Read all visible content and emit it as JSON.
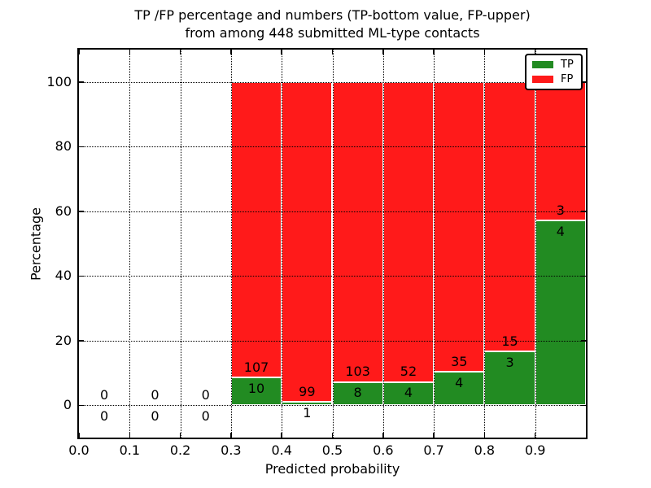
{
  "title": {
    "line1": "TP /FP percentage and numbers (TP-bottom value, FP-upper)",
    "line2": "from among 448 submitted ML-type contacts"
  },
  "axes": {
    "xlabel": "Predicted probability",
    "ylabel": "Percentage",
    "x_tick_labels": [
      "0.0",
      "0.1",
      "0.2",
      "0.3",
      "0.4",
      "0.5",
      "0.6",
      "0.7",
      "0.8",
      "0.9"
    ],
    "y_tick_labels": [
      "0",
      "20",
      "40",
      "60",
      "80",
      "100"
    ],
    "xlim": [
      0.0,
      1.0
    ],
    "ylim": [
      -10,
      110
    ],
    "grid": "dotted"
  },
  "legend": {
    "position": "upper-right",
    "items": [
      {
        "label": "TP",
        "color": "#228b22"
      },
      {
        "label": "FP",
        "color": "#ff1a1a"
      }
    ]
  },
  "chart_data": {
    "type": "bar",
    "stacked": true,
    "normalized_to_percent": 100,
    "title": "TP /FP percentage and numbers (TP-bottom value, FP-upper) from among 448 submitted ML-type contacts",
    "xlabel": "Predicted probability",
    "ylabel": "Percentage",
    "total_contacts": 448,
    "bin_width": 0.1,
    "bin_starts": [
      0.0,
      0.1,
      0.2,
      0.3,
      0.4,
      0.5,
      0.6,
      0.7,
      0.8,
      0.9
    ],
    "series": [
      {
        "name": "TP",
        "color": "#228b22",
        "counts": [
          0,
          0,
          0,
          10,
          1,
          8,
          4,
          4,
          3,
          4
        ]
      },
      {
        "name": "FP",
        "color": "#ff1a1a",
        "counts": [
          0,
          0,
          0,
          107,
          99,
          103,
          52,
          35,
          15,
          3
        ]
      }
    ],
    "tp_percent_of_bin": [
      0,
      0,
      0,
      8.55,
      1.0,
      7.21,
      7.14,
      10.26,
      16.67,
      57.14
    ]
  }
}
